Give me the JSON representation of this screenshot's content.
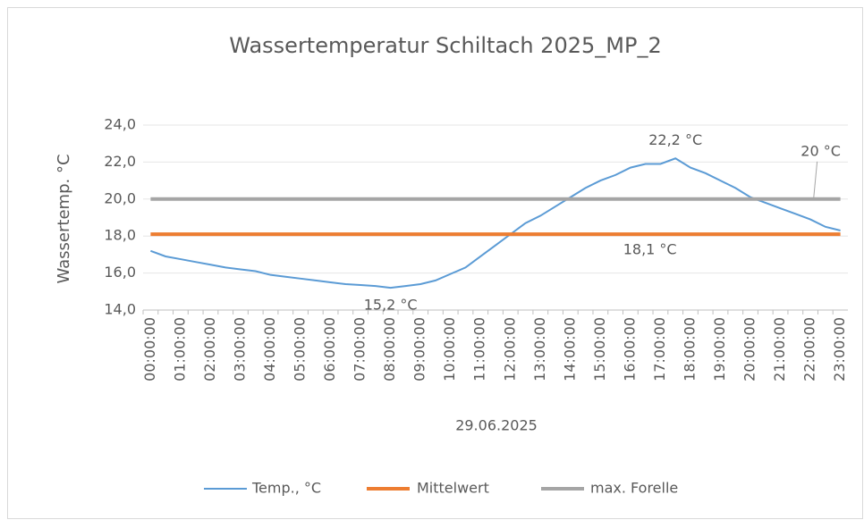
{
  "chart_data": {
    "type": "line",
    "title": "Wassertemperatur Schiltach 2025_MP_2",
    "y_label": "Wassertemp. °C",
    "x_label": "29.06.2025",
    "categories": [
      "00:00:00",
      null,
      "01:00:00",
      null,
      "02:00:00",
      null,
      "03:00:00",
      null,
      "04:00:00",
      null,
      "05:00:00",
      null,
      "06:00:00",
      null,
      "07:00:00",
      null,
      "08:00:00",
      null,
      "09:00:00",
      null,
      "10:00:00",
      null,
      "11:00:00",
      null,
      "12:00:00",
      null,
      "13:00:00",
      null,
      "14:00:00",
      null,
      "15:00:00",
      null,
      "16:00:00",
      null,
      "17:00:00",
      null,
      "18:00:00",
      null,
      "19:00:00",
      null,
      "20:00:00",
      null,
      "21:00:00",
      null,
      "22:00:00",
      null,
      "23:00:00"
    ],
    "series": [
      {
        "name": "Temp., °C",
        "color": "#5b9bd5",
        "values": [
          17.2,
          16.9,
          16.75,
          16.6,
          16.45,
          16.3,
          16.2,
          16.1,
          15.9,
          15.8,
          15.7,
          15.6,
          15.5,
          15.4,
          15.35,
          15.3,
          15.2,
          15.3,
          15.4,
          15.6,
          15.95,
          16.3,
          16.9,
          17.5,
          18.1,
          18.7,
          19.1,
          19.6,
          20.1,
          20.6,
          21.0,
          21.3,
          21.7,
          21.9,
          21.9,
          22.2,
          21.7,
          21.4,
          21.0,
          20.6,
          20.1,
          19.8,
          19.5,
          19.2,
          18.9,
          18.5,
          18.3
        ],
        "value_labels": [
          null,
          null,
          null,
          null,
          null,
          null,
          null,
          null,
          null,
          null,
          null,
          null,
          null,
          null,
          null,
          null,
          "15,2 °C",
          null,
          null,
          null,
          null,
          null,
          null,
          null,
          null,
          null,
          null,
          null,
          null,
          null,
          null,
          null,
          null,
          null,
          null,
          "22,2 °C",
          null,
          null,
          null,
          null,
          null,
          null,
          null,
          null,
          null,
          null,
          null
        ]
      },
      {
        "name": "Mittelwert",
        "color": "#ed7d31",
        "values": [
          18.1,
          18.1,
          18.1,
          18.1,
          18.1,
          18.1,
          18.1,
          18.1,
          18.1,
          18.1,
          18.1,
          18.1,
          18.1,
          18.1,
          18.1,
          18.1,
          18.1,
          18.1,
          18.1,
          18.1,
          18.1,
          18.1,
          18.1,
          18.1,
          18.1,
          18.1,
          18.1,
          18.1,
          18.1,
          18.1,
          18.1,
          18.1,
          18.1,
          18.1,
          18.1,
          18.1,
          18.1,
          18.1,
          18.1,
          18.1,
          18.1,
          18.1,
          18.1,
          18.1,
          18.1,
          18.1,
          18.1
        ],
        "value_labels": [
          null,
          null,
          null,
          null,
          null,
          null,
          null,
          null,
          null,
          null,
          null,
          null,
          null,
          null,
          null,
          null,
          null,
          null,
          null,
          null,
          null,
          null,
          null,
          null,
          null,
          null,
          null,
          null,
          null,
          null,
          null,
          null,
          null,
          "18,1 °C",
          null,
          null,
          null,
          null,
          null,
          null,
          null,
          null,
          null,
          null,
          null,
          null,
          null
        ]
      },
      {
        "name": "max. Forelle",
        "color": "#a5a5a5",
        "values": [
          20,
          20,
          20,
          20,
          20,
          20,
          20,
          20,
          20,
          20,
          20,
          20,
          20,
          20,
          20,
          20,
          20,
          20,
          20,
          20,
          20,
          20,
          20,
          20,
          20,
          20,
          20,
          20,
          20,
          20,
          20,
          20,
          20,
          20,
          20,
          20,
          20,
          20,
          20,
          20,
          20,
          20,
          20,
          20,
          20,
          20,
          20
        ],
        "value_labels": [
          null,
          null,
          null,
          null,
          null,
          null,
          null,
          null,
          null,
          null,
          null,
          null,
          null,
          null,
          null,
          null,
          null,
          null,
          null,
          null,
          null,
          null,
          null,
          null,
          null,
          null,
          null,
          null,
          null,
          null,
          null,
          null,
          null,
          null,
          null,
          null,
          null,
          null,
          null,
          null,
          null,
          null,
          null,
          null,
          null,
          null,
          "20 °C"
        ]
      }
    ],
    "ylim": [
      14,
      24
    ],
    "yticks": [
      {
        "value": 14,
        "label": "14,0"
      },
      {
        "value": 16,
        "label": "16,0"
      },
      {
        "value": 18,
        "label": "18,0"
      },
      {
        "value": 20,
        "label": "20,0"
      },
      {
        "value": 22,
        "label": "22,0"
      },
      {
        "value": 24,
        "label": "24,0"
      }
    ],
    "grid": true,
    "legend": "bottom"
  }
}
